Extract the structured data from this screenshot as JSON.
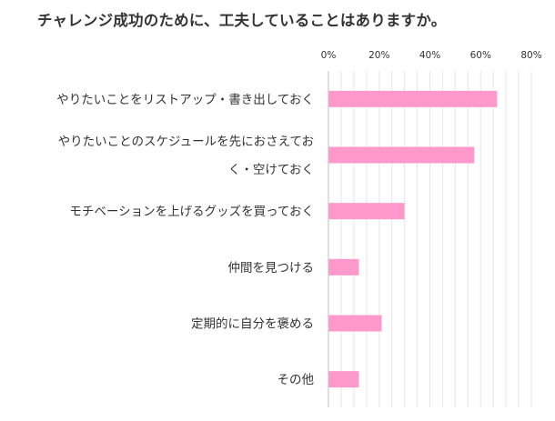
{
  "chart_data": {
    "type": "bar",
    "orientation": "horizontal",
    "title": "チャレンジ成功のために、工夫していることはありますか。",
    "categories": [
      [
        "やりたいことをリストアップ・書き出しておく"
      ],
      [
        "やりたいことのスケジュールを先におさえてお",
        "く・空けておく"
      ],
      [
        "モチベーションを上げるグッズを買っておく"
      ],
      [
        "仲間を見つける"
      ],
      [
        "定期的に自分を褒める"
      ],
      [
        "その他"
      ]
    ],
    "values": [
      66.5,
      57.5,
      30,
      12,
      21,
      12
    ],
    "x_ticks": [
      "0%",
      "20%",
      "40%",
      "60%",
      "80%"
    ],
    "xlim": [
      0,
      80
    ],
    "grid": true,
    "legend": "none",
    "bar_color": "#ff99cc",
    "grid_color": "#e6e6e6"
  }
}
